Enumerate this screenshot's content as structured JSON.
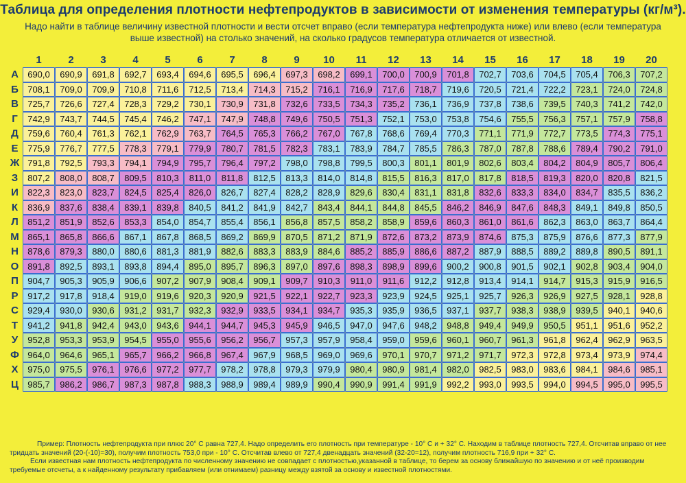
{
  "title": "Таблица для определения плотности нефтепродуктов в зависимости от изменения температуры (кг/м³).",
  "subtitle": "Надо найти в таблице величину известной плотности и вести отсчет вправо (если температура нефтепродукта ниже) или влево (если температура выше известной) на столько значений, на сколько градусов температура отличается от известной.",
  "columns": [
    "1",
    "2",
    "3",
    "4",
    "5",
    "6",
    "7",
    "8",
    "9",
    "10",
    "11",
    "12",
    "13",
    "14",
    "15",
    "16",
    "17",
    "18",
    "19",
    "20"
  ],
  "rows": [
    {
      "label": "А",
      "values": [
        "690,0",
        "690,9",
        "691,8",
        "692,7",
        "693,4",
        "694,6",
        "695,5",
        "696,4",
        "697,3",
        "698,2",
        "699,1",
        "700,0",
        "700,9",
        "701,8",
        "702,7",
        "703,6",
        "704,5",
        "705,4",
        "706,3",
        "707,2"
      ]
    },
    {
      "label": "Б",
      "values": [
        "708,1",
        "709,0",
        "709,9",
        "710,8",
        "711,6",
        "712,5",
        "713,4",
        "714,3",
        "715,2",
        "716,1",
        "716,9",
        "717,6",
        "718,7",
        "719,6",
        "720,5",
        "721,4",
        "722,2",
        "723,1",
        "724,0",
        "724,8"
      ]
    },
    {
      "label": "В",
      "values": [
        "725,7",
        "726,6",
        "727,4",
        "728,3",
        "729,2",
        "730,1",
        "730,9",
        "731,8",
        "732,6",
        "733,5",
        "734,3",
        "735,2",
        "736,1",
        "736,9",
        "737,8",
        "738,6",
        "739,5",
        "740,3",
        "741,2",
        "742,0"
      ]
    },
    {
      "label": "Г",
      "values": [
        "742,9",
        "743,7",
        "744,5",
        "745,4",
        "746,2",
        "747,1",
        "747,9",
        "748,8",
        "749,6",
        "750,5",
        "751,3",
        "752,1",
        "753,0",
        "753,8",
        "754,6",
        "755,5",
        "756,3",
        "757,1",
        "757,9",
        "758,8"
      ]
    },
    {
      "label": "Д",
      "values": [
        "759,6",
        "760,4",
        "761,3",
        "762,1",
        "762,9",
        "763,7",
        "764,5",
        "765,3",
        "766,2",
        "767,0",
        "767,8",
        "768,6",
        "769,4",
        "770,3",
        "771,1",
        "771,9",
        "772,7",
        "773,5",
        "774,3",
        "775,1"
      ]
    },
    {
      "label": "Е",
      "values": [
        "775,9",
        "776,7",
        "777,5",
        "778,3",
        "779,1",
        "779,9",
        "780,7",
        "781,5",
        "782,3",
        "783,1",
        "783,9",
        "784,7",
        "785,5",
        "786,3",
        "787,0",
        "787,8",
        "788,6",
        "789,4",
        "790,2",
        "791,0"
      ]
    },
    {
      "label": "Ж",
      "values": [
        "791,8",
        "792,5",
        "793,3",
        "794,1",
        "794,9",
        "795,7",
        "796,4",
        "797,2",
        "798,0",
        "798,8",
        "799,5",
        "800,3",
        "801,1",
        "801,9",
        "802,6",
        "803,4",
        "804,2",
        "804,9",
        "805,7",
        "806,4"
      ]
    },
    {
      "label": "З",
      "values": [
        "807,2",
        "808,0",
        "808,7",
        "809,5",
        "810,3",
        "811,0",
        "811,8",
        "812,5",
        "813,3",
        "814,0",
        "814,8",
        "815,5",
        "816,3",
        "817,0",
        "817,8",
        "818,5",
        "819,3",
        "820,0",
        "820,8",
        "821,5"
      ]
    },
    {
      "label": "И",
      "values": [
        "822,3",
        "823,0",
        "823,7",
        "824,5",
        "825,4",
        "826,0",
        "826,7",
        "827,4",
        "828,2",
        "828,9",
        "829,6",
        "830,4",
        "831,1",
        "831,8",
        "832,6",
        "833,3",
        "834,0",
        "834,7",
        "835,5",
        "836,2"
      ]
    },
    {
      "label": "К",
      "values": [
        "836,9",
        "837,6",
        "838,4",
        "839,1",
        "839,8",
        "840,5",
        "841,2",
        "841,9",
        "842,7",
        "843,4",
        "844,1",
        "844,8",
        "845,5",
        "846,2",
        "846,9",
        "847,6",
        "848,3",
        "849,1",
        "849,8",
        "850,5"
      ]
    },
    {
      "label": "Л",
      "values": [
        "851,2",
        "851,9",
        "852,6",
        "853,3",
        "854,0",
        "854,7",
        "855,4",
        "856,1",
        "856,8",
        "857,5",
        "858,2",
        "858,9",
        "859,6",
        "860,3",
        "861,0",
        "861,6",
        "862,3",
        "863,0",
        "863,7",
        "864,4"
      ]
    },
    {
      "label": "М",
      "values": [
        "865,1",
        "865,8",
        "866,6",
        "867,1",
        "867,8",
        "868,5",
        "869,2",
        "869,9",
        "870,5",
        "871,2",
        "871,9",
        "872,6",
        "873,2",
        "873,9",
        "874,6",
        "875,3",
        "875,9",
        "876,6",
        "877,3",
        "877,9"
      ]
    },
    {
      "label": "Н",
      "values": [
        "878,6",
        "879,3",
        "880,0",
        "880,6",
        "881,3",
        "881,9",
        "882,6",
        "883,3",
        "883,9",
        "884,6",
        "885,2",
        "885,9",
        "886,6",
        "887,2",
        "887,9",
        "888,5",
        "889,2",
        "889,8",
        "890,5",
        "891,1"
      ]
    },
    {
      "label": "О",
      "values": [
        "891,8",
        "892,5",
        "893,1",
        "893,8",
        "894,4",
        "895,0",
        "895,7",
        "896,3",
        "897,0",
        "897,6",
        "898,3",
        "898,9",
        "899,6",
        "900,2",
        "900,8",
        "901,5",
        "902,1",
        "902,8",
        "903,4",
        "904,0"
      ]
    },
    {
      "label": "П",
      "values": [
        "904,7",
        "905,3",
        "905,9",
        "906,6",
        "907,2",
        "907,9",
        "908,4",
        "909,1",
        "909,7",
        "910,3",
        "911,0",
        "911,6",
        "912,2",
        "912,8",
        "913,4",
        "914,1",
        "914,7",
        "915,3",
        "915,9",
        "916,5"
      ]
    },
    {
      "label": "Р",
      "values": [
        "917,2",
        "917,8",
        "918,4",
        "919,0",
        "919,6",
        "920,3",
        "920,9",
        "921,5",
        "922,1",
        "922,7",
        "923,3",
        "923,9",
        "924,5",
        "925,1",
        "925,7",
        "926,3",
        "926,9",
        "927,5",
        "928,1",
        "928,8"
      ]
    },
    {
      "label": "С",
      "values": [
        "929,4",
        "930,0",
        "930,6",
        "931,2",
        "931,7",
        "932,3",
        "932,9",
        "933,5",
        "934,1",
        "934,7",
        "935,3",
        "935,9",
        "936,5",
        "937,1",
        "937,7",
        "938,3",
        "938,9",
        "939,5",
        "940,1",
        "940,6"
      ]
    },
    {
      "label": "Т",
      "values": [
        "941,2",
        "941,8",
        "942,4",
        "943,0",
        "943,6",
        "944,1",
        "944,7",
        "945,3",
        "945,9",
        "946,5",
        "947,0",
        "947,6",
        "948,2",
        "948,8",
        "949,4",
        "949,9",
        "950,5",
        "951,1",
        "951,6",
        "952,2"
      ]
    },
    {
      "label": "У",
      "values": [
        "952,8",
        "953,3",
        "953,9",
        "954,5",
        "955,0",
        "955,6",
        "956,2",
        "956,7",
        "957,3",
        "957,9",
        "958,4",
        "959,0",
        "959,6",
        "960,1",
        "960,7",
        "961,3",
        "961,8",
        "962,4",
        "962,9",
        "963,5"
      ]
    },
    {
      "label": "Ф",
      "values": [
        "964,0",
        "964,6",
        "965,1",
        "965,7",
        "966,2",
        "966,8",
        "967,4",
        "967,9",
        "968,5",
        "969,0",
        "969,6",
        "970,1",
        "970,7",
        "971,2",
        "971,7",
        "972,3",
        "972,8",
        "973,4",
        "973,9",
        "974,4"
      ]
    },
    {
      "label": "Х",
      "values": [
        "975,0",
        "975,5",
        "976,1",
        "976,6",
        "977,2",
        "977,7",
        "978,2",
        "978,8",
        "979,3",
        "979,9",
        "980,4",
        "980,9",
        "981,4",
        "982,0",
        "982,5",
        "983,0",
        "983,6",
        "984,1",
        "984,6",
        "985,1"
      ]
    },
    {
      "label": "Ц",
      "values": [
        "985,7",
        "986,2",
        "986,7",
        "987,3",
        "987,8",
        "988,3",
        "988,9",
        "989,4",
        "989,9",
        "990,4",
        "990,9",
        "991,4",
        "991,9",
        "992,2",
        "993,0",
        "993,5",
        "994,0",
        "994,5",
        "995,0",
        "995,5"
      ]
    }
  ],
  "cell_colors": {
    "yellow": "#fbf19a",
    "pink": "#f7bcc6",
    "magenta": "#da8fd8",
    "cyan": "#a9e1ef",
    "green": "#c4e79c",
    "white": "#ffffff",
    "border": "#3b6ecf"
  },
  "footnote": [
    "Пример: Плотность нефтепродукта при плюс 20° С равна 727,4.   Надо   определить его плотность при температуре - 10° С и + 32° С.   Находим в таблице плотность 727,4.  Отсчитав вправо от нее тридцать значений (20-(-10)=30),  получим плотность 753,0 при - 10° С.   Отсчитав влево  от 727,4  двенадцать значений (32-20=12),  получим плотность 716,9 при +   32° С.",
    "Если известная нам плотность нефтепродукта по численному значению не совпадает с плотностью,указанной в таблице,   то берем за основу ближайшую по значению и от неё производим требуемые отсчеты, а к найденному результату прибавляем (или отнимаем)  разницу между взятой за основу и известной плотностями."
  ]
}
